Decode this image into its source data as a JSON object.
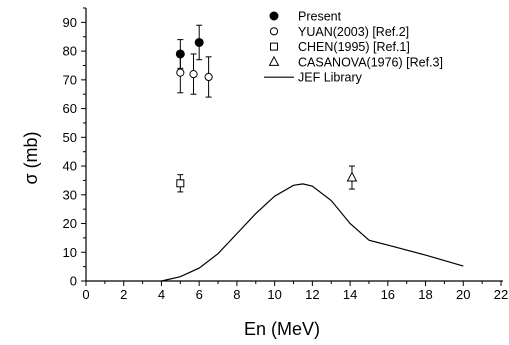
{
  "chart_data": {
    "type": "scatter",
    "xlabel": "En  (MeV)",
    "ylabel": "σ  (mb)",
    "xlim": [
      0,
      22
    ],
    "ylim": [
      0,
      95
    ],
    "xticks": [
      0,
      2,
      4,
      6,
      8,
      10,
      12,
      14,
      16,
      18,
      20,
      22
    ],
    "yticks": [
      0,
      10,
      20,
      30,
      40,
      50,
      60,
      70,
      80,
      90
    ],
    "grid": false,
    "legend_position": "top-right",
    "series": [
      {
        "name": "Present",
        "kind": "points",
        "marker": "filled-circle",
        "points": [
          {
            "x": 5.0,
            "y": 79,
            "err": 5
          },
          {
            "x": 6.0,
            "y": 83,
            "err": 6
          }
        ]
      },
      {
        "name": "YUAN(2003) [Ref.2]",
        "kind": "points",
        "marker": "open-circle",
        "points": [
          {
            "x": 5.0,
            "y": 72.5,
            "err": 7
          },
          {
            "x": 5.7,
            "y": 72,
            "err": 7
          },
          {
            "x": 6.5,
            "y": 71,
            "err": 7
          }
        ]
      },
      {
        "name": "CHEN(1995) [Ref.1]",
        "kind": "points",
        "marker": "open-square",
        "points": [
          {
            "x": 5.0,
            "y": 34,
            "err": 3
          }
        ]
      },
      {
        "name": "CASANOVA(1976) [Ref.3]",
        "kind": "points",
        "marker": "open-triangle",
        "points": [
          {
            "x": 14.1,
            "y": 36,
            "err": 4
          }
        ]
      },
      {
        "name": "JEF Library",
        "kind": "line",
        "points": [
          {
            "x": 4.0,
            "y": 0
          },
          {
            "x": 5.0,
            "y": 1.5
          },
          {
            "x": 6.0,
            "y": 4.5
          },
          {
            "x": 7.0,
            "y": 9.5
          },
          {
            "x": 8.0,
            "y": 16.5
          },
          {
            "x": 9.0,
            "y": 23.5
          },
          {
            "x": 10.0,
            "y": 29.5
          },
          {
            "x": 11.0,
            "y": 33.3
          },
          {
            "x": 11.5,
            "y": 33.8
          },
          {
            "x": 12.0,
            "y": 33
          },
          {
            "x": 13.0,
            "y": 28
          },
          {
            "x": 14.0,
            "y": 20
          },
          {
            "x": 15.0,
            "y": 14.2
          },
          {
            "x": 16.0,
            "y": 12.5
          },
          {
            "x": 18.0,
            "y": 9
          },
          {
            "x": 20.0,
            "y": 5.2
          }
        ]
      }
    ]
  }
}
